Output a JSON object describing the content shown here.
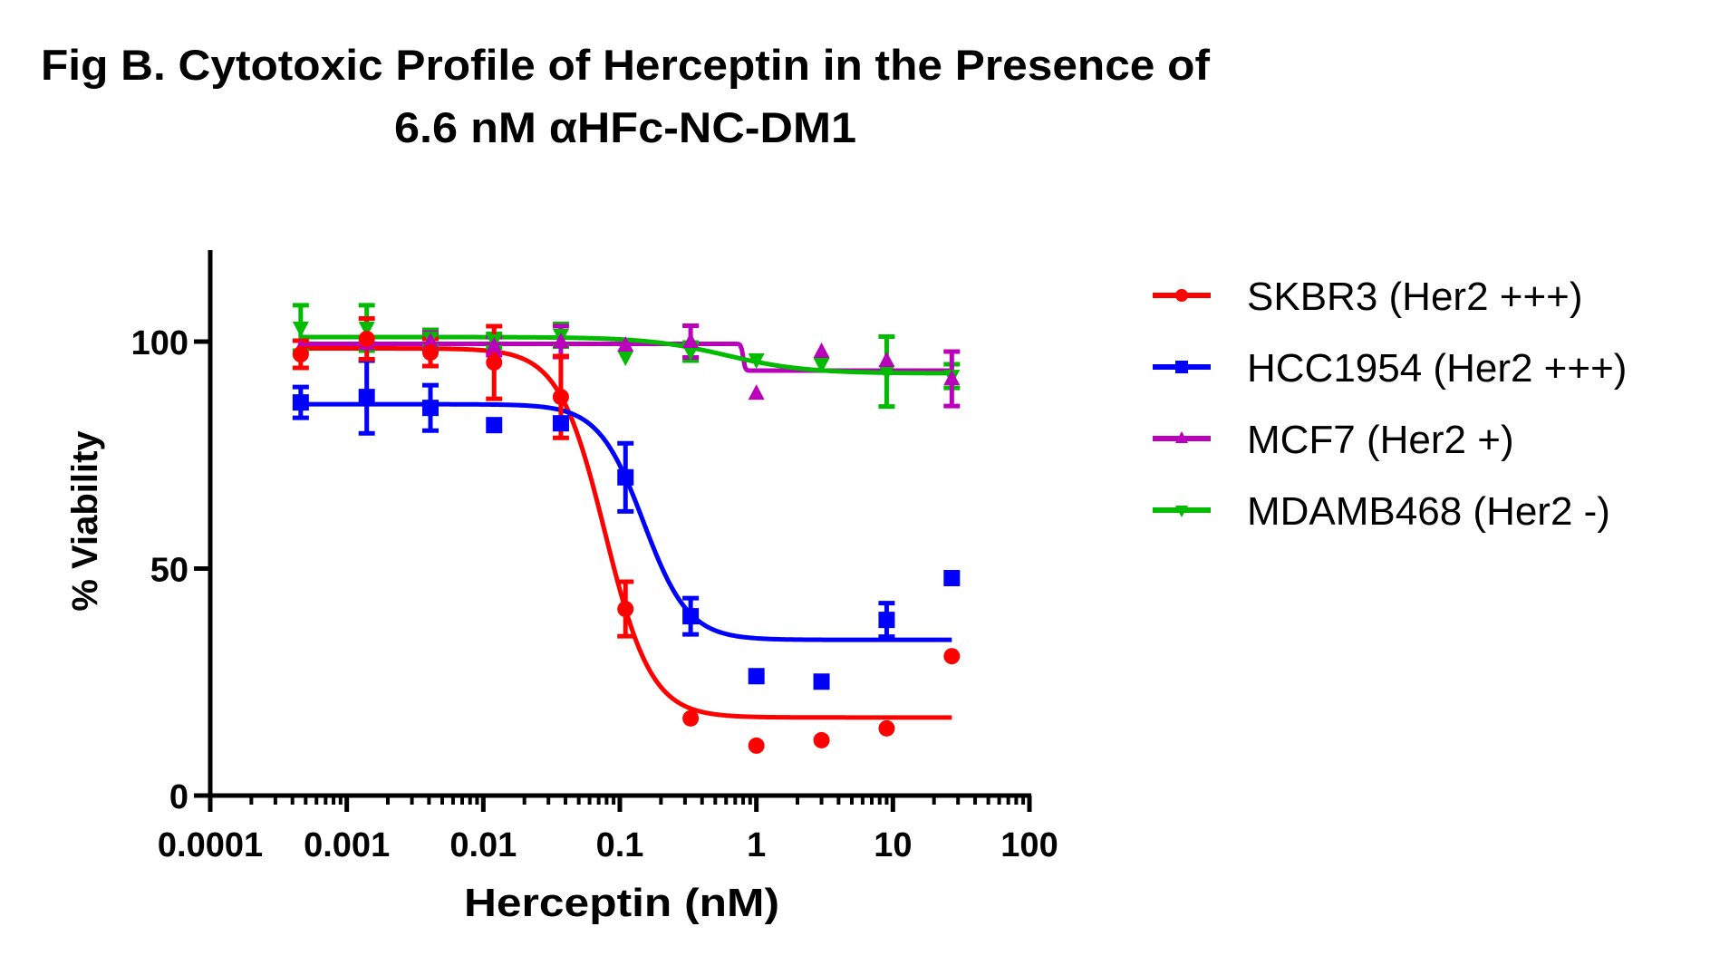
{
  "chart_data": {
    "type": "scatter",
    "title": "Fig B. Cytotoxic Profile of Herceptin in the Presence of",
    "subtitle": "6.6 nM αHFc-NC-DM1",
    "xlabel": "Herceptin (nM)",
    "ylabel": "% Viability",
    "xscale": "log",
    "xlim": [
      0.0001,
      100
    ],
    "ylim": [
      0,
      120
    ],
    "x_ticks": [
      0.0001,
      0.001,
      0.01,
      0.1,
      1,
      10,
      100
    ],
    "x_tick_labels": [
      "0.0001",
      "0.001",
      "0.01",
      "0.1",
      "1",
      "10",
      "100"
    ],
    "y_ticks": [
      0,
      50,
      100
    ],
    "y_tick_labels": [
      "0",
      "50",
      "100"
    ],
    "grid": false,
    "legend_position": "right",
    "x": [
      0.00046,
      0.0014,
      0.0041,
      0.012,
      0.037,
      0.11,
      0.33,
      1,
      3,
      9,
      27
    ],
    "series": [
      {
        "name": "SKBR3 (Her2 +++)",
        "color": "#ff0000",
        "marker": "circle",
        "values": [
          97.2,
          100.6,
          97.6,
          95.4,
          87.8,
          41.1,
          17.0,
          11.0,
          12.2,
          14.8,
          30.7
        ],
        "errors": [
          3,
          4.5,
          3,
          8,
          9,
          6,
          null,
          null,
          null,
          null,
          null
        ],
        "fit": {
          "top": 98.5,
          "bottom": 17.2,
          "ic50": 0.078,
          "hill": 2.56
        }
      },
      {
        "name": "HCC1954 (Her2 +++)",
        "color": "#0000ff",
        "marker": "square",
        "values": [
          86.6,
          87.8,
          85.4,
          81.6,
          82.0,
          70.1,
          39.5,
          26.3,
          25.1,
          38.7,
          47.9
        ],
        "errors": [
          3.4,
          8,
          5,
          null,
          null,
          7.5,
          4,
          null,
          null,
          3.7,
          null
        ],
        "fit": {
          "top": 86.2,
          "bottom": 34.3,
          "ic50": 0.149,
          "hill": 2.63
        }
      },
      {
        "name": "MCF7 (Her2 +)",
        "color": "#bb00bb",
        "marker": "triangle-up",
        "values": [
          98.5,
          99.5,
          100.0,
          99.0,
          100.0,
          99.2,
          100.0,
          88.6,
          97.8,
          95.8,
          91.8
        ],
        "errors": [
          null,
          null,
          2,
          2,
          3.4,
          null,
          3.5,
          null,
          null,
          null,
          6
        ],
        "fit": {
          "top": 99.5,
          "bottom": 93.6,
          "ic50": 0.8,
          "hill": 60
        }
      },
      {
        "name": "MDAMB468 (Her2 -)",
        "color": "#00bb00",
        "marker": "triangle-down",
        "values": [
          103.0,
          103.0,
          100.8,
          100.2,
          101.4,
          96.6,
          97.8,
          96.0,
          95.0,
          93.4,
          92.4
        ],
        "errors": [
          5,
          5,
          1.8,
          1.5,
          2.5,
          null,
          2,
          null,
          null,
          7.7,
          2.6
        ],
        "fit": {
          "top": 101.0,
          "bottom": 93.0,
          "ic50": 0.6,
          "hill": 1.5
        }
      }
    ]
  }
}
